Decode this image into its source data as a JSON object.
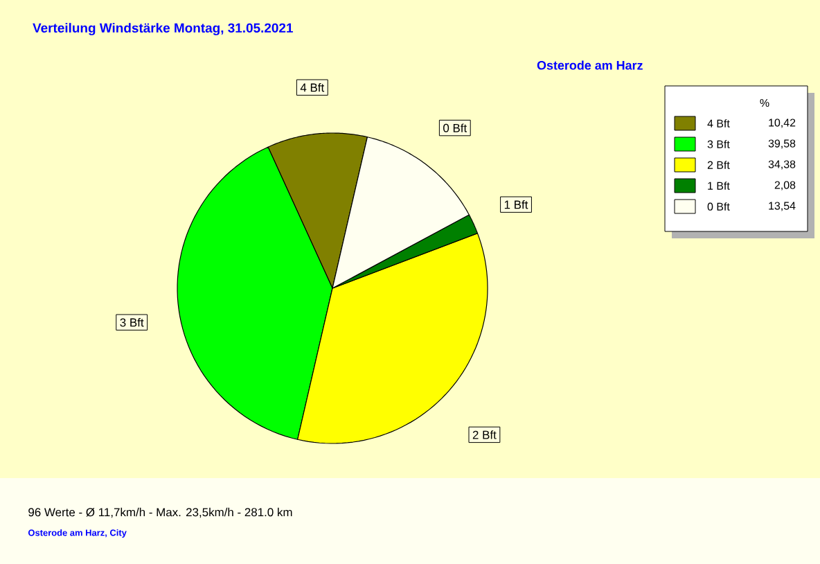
{
  "chart_data": {
    "type": "pie",
    "title": "Verteilung Windstärke  Montag, 31.05.2021",
    "subtitle": "Osterode am Harz",
    "categories": [
      "4 Bft",
      "3 Bft",
      "2 Bft",
      "1 Bft",
      "0 Bft"
    ],
    "values": [
      10.42,
      39.58,
      34.38,
      2.08,
      13.54
    ],
    "colors": [
      "#808000",
      "#00ff00",
      "#ffff00",
      "#008000",
      "#fffff0"
    ],
    "value_labels": [
      "10,42",
      "39,58",
      "34,38",
      "2,08",
      "13,54"
    ],
    "legend": "top right",
    "legend_title": "%",
    "annotations": [
      "96 Werte   -   Ø 11,7km/h  -  Max. 23,5km/h   -   281.0 km",
      "Osterode am Harz, City"
    ]
  }
}
